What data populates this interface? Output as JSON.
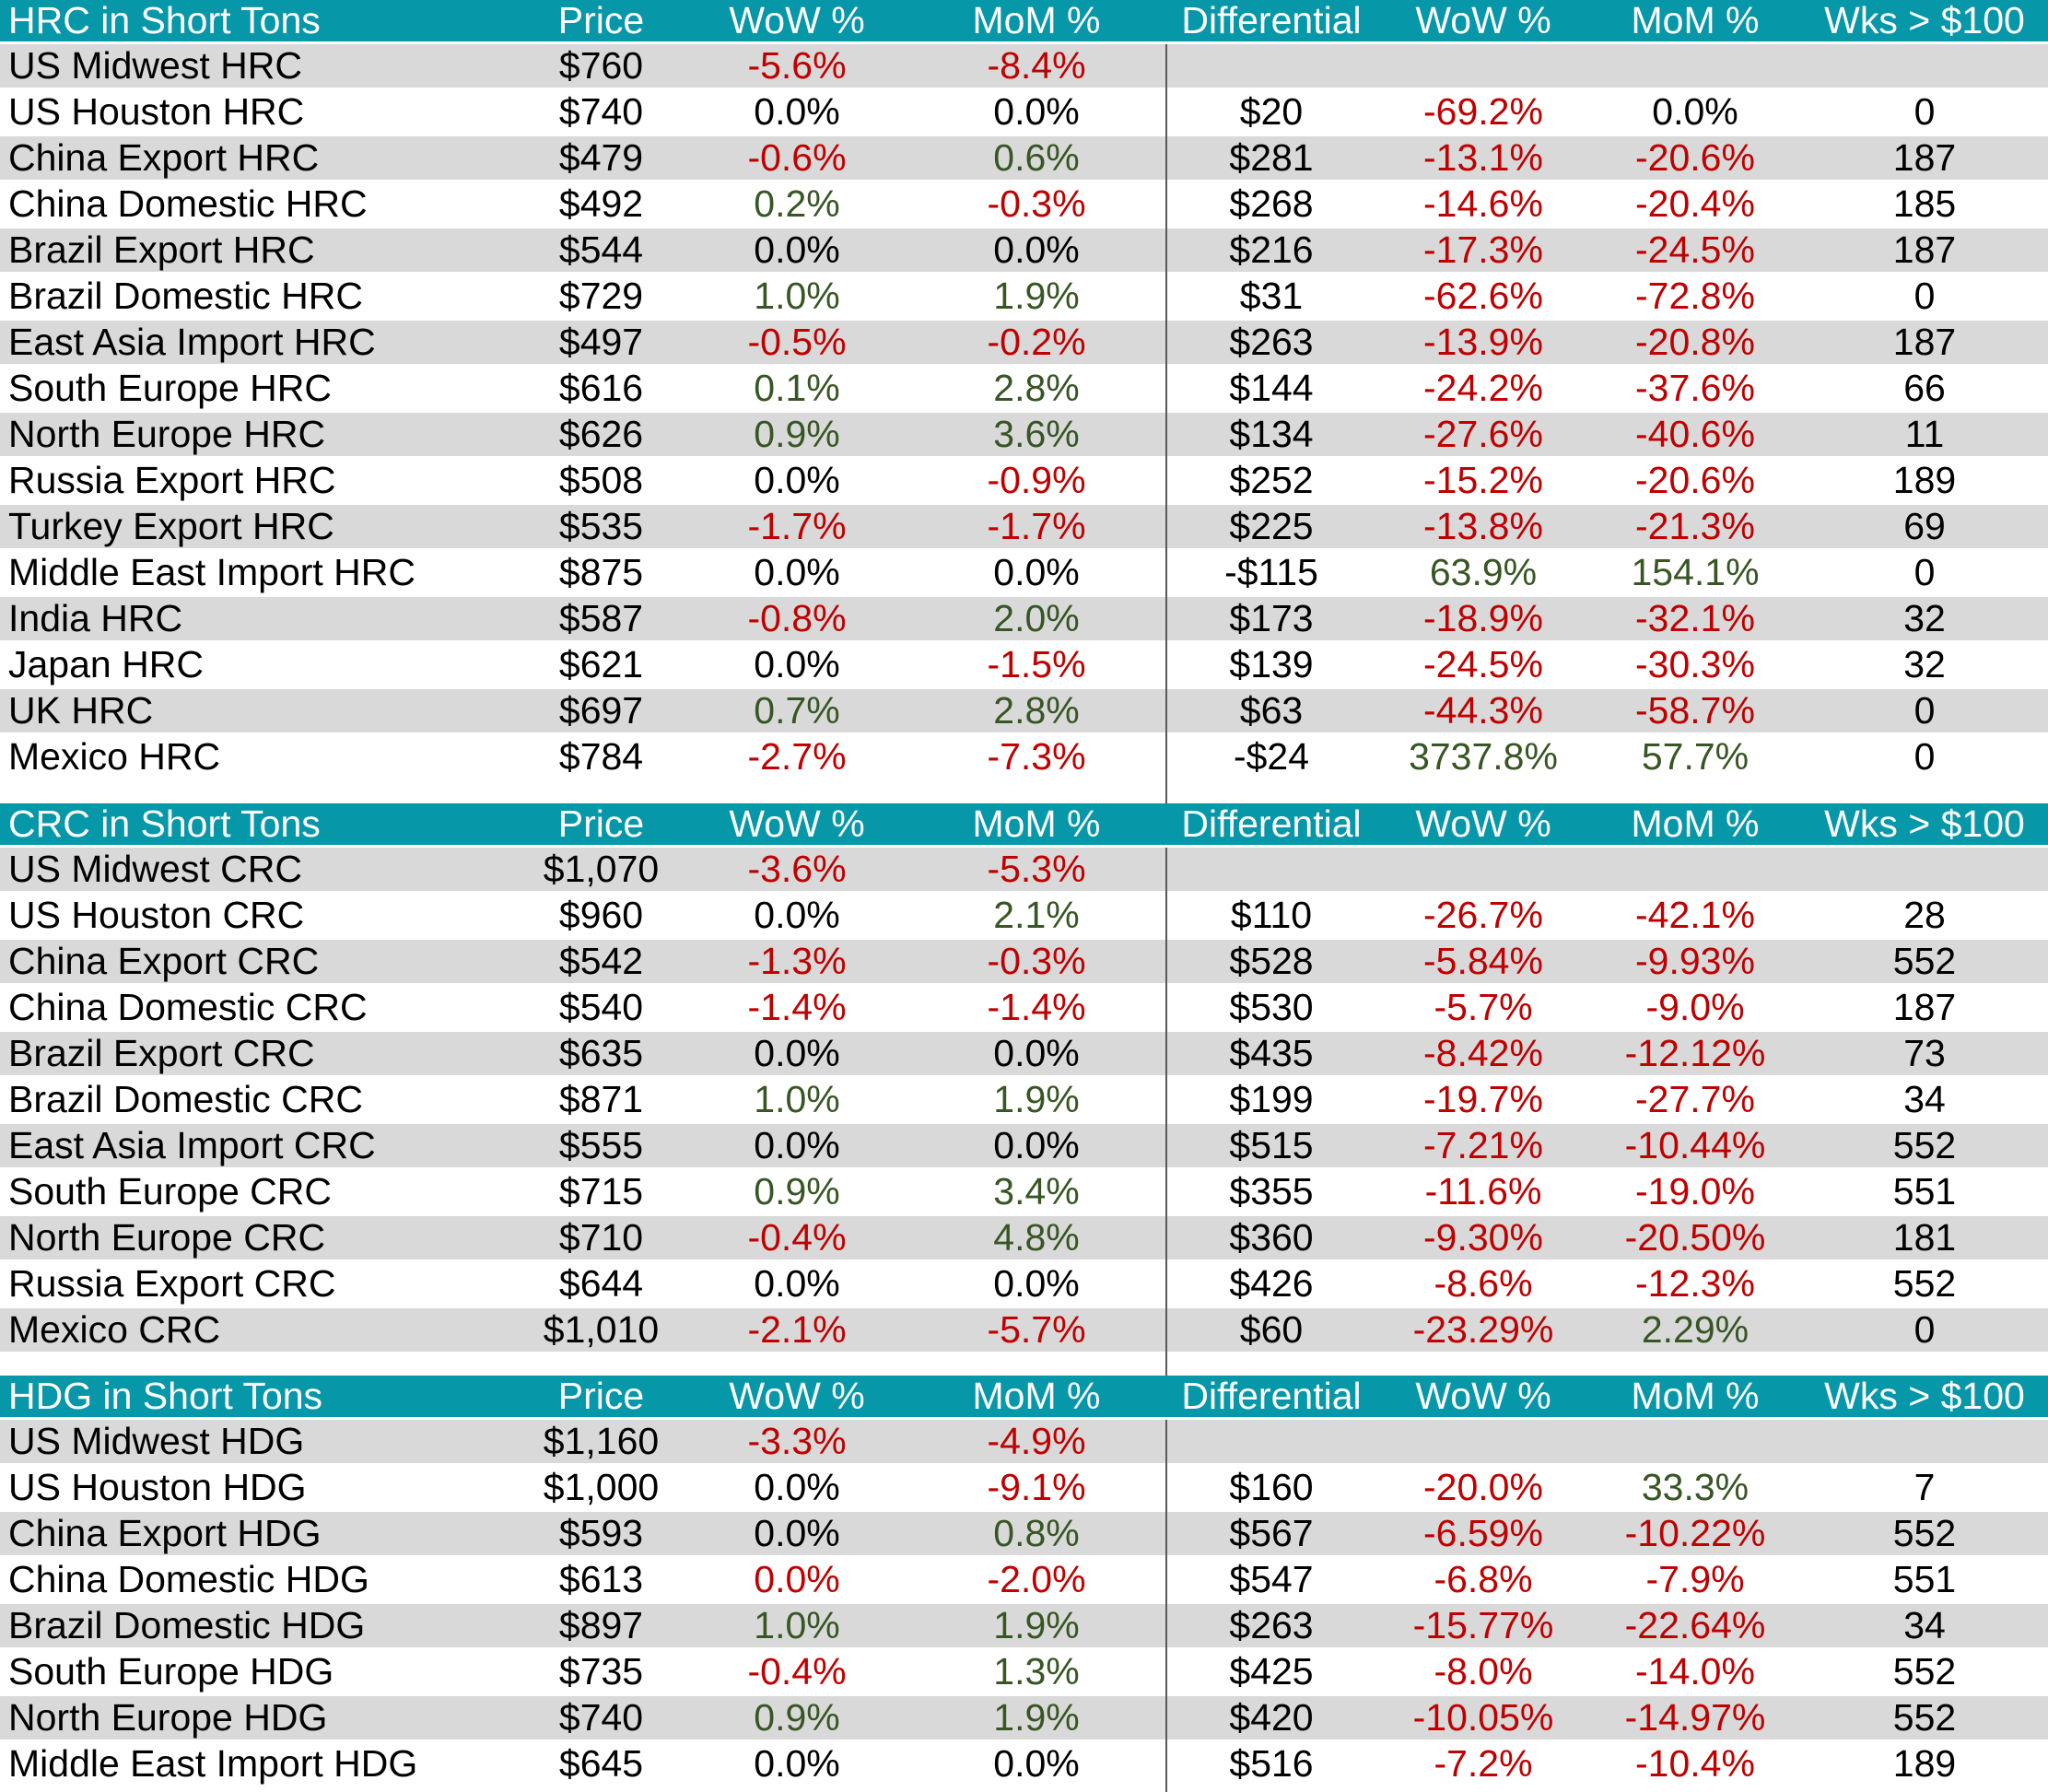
{
  "colors": {
    "header_teal": "#0697A9",
    "row_gray": "#D9D9D9",
    "negative_red": "#C00000",
    "positive_green": "#375623"
  },
  "columns": [
    "Price",
    "WoW %",
    "MoM %",
    "Differential",
    "WoW %",
    "MoM %",
    "Wks > $100"
  ],
  "sections": [
    {
      "id": "hrc",
      "title": "HRC in Short Tons",
      "rows": [
        {
          "label": "US Midwest HRC",
          "price": "$760",
          "wow": "-5.6%",
          "wow_c": "r",
          "mom": "-8.4%",
          "mom_c": "r",
          "diff": "",
          "w2": "",
          "w2_c": "k",
          "m2": "",
          "m2_c": "k",
          "wks": ""
        },
        {
          "label": "US Houston HRC",
          "price": "$740",
          "wow": "0.0%",
          "wow_c": "k",
          "mom": "0.0%",
          "mom_c": "k",
          "diff": "$20",
          "w2": "-69.2%",
          "w2_c": "r",
          "m2": "0.0%",
          "m2_c": "k",
          "wks": "0"
        },
        {
          "label": "China Export HRC",
          "price": "$479",
          "wow": "-0.6%",
          "wow_c": "r",
          "mom": "0.6%",
          "mom_c": "g",
          "diff": "$281",
          "w2": "-13.1%",
          "w2_c": "r",
          "m2": "-20.6%",
          "m2_c": "r",
          "wks": "187"
        },
        {
          "label": "China Domestic HRC",
          "price": "$492",
          "wow": "0.2%",
          "wow_c": "g",
          "mom": "-0.3%",
          "mom_c": "r",
          "diff": "$268",
          "w2": "-14.6%",
          "w2_c": "r",
          "m2": "-20.4%",
          "m2_c": "r",
          "wks": "185"
        },
        {
          "label": "Brazil Export HRC",
          "price": "$544",
          "wow": "0.0%",
          "wow_c": "k",
          "mom": "0.0%",
          "mom_c": "k",
          "diff": "$216",
          "w2": "-17.3%",
          "w2_c": "r",
          "m2": "-24.5%",
          "m2_c": "r",
          "wks": "187"
        },
        {
          "label": "Brazil Domestic HRC",
          "price": "$729",
          "wow": "1.0%",
          "wow_c": "g",
          "mom": "1.9%",
          "mom_c": "g",
          "diff": "$31",
          "w2": "-62.6%",
          "w2_c": "r",
          "m2": "-72.8%",
          "m2_c": "r",
          "wks": "0"
        },
        {
          "label": "East Asia Import HRC",
          "price": "$497",
          "wow": "-0.5%",
          "wow_c": "r",
          "mom": "-0.2%",
          "mom_c": "r",
          "diff": "$263",
          "w2": "-13.9%",
          "w2_c": "r",
          "m2": "-20.8%",
          "m2_c": "r",
          "wks": "187"
        },
        {
          "label": "South Europe HRC",
          "price": "$616",
          "wow": "0.1%",
          "wow_c": "g",
          "mom": "2.8%",
          "mom_c": "g",
          "diff": "$144",
          "w2": "-24.2%",
          "w2_c": "r",
          "m2": "-37.6%",
          "m2_c": "r",
          "wks": "66"
        },
        {
          "label": "North Europe HRC",
          "price": "$626",
          "wow": "0.9%",
          "wow_c": "g",
          "mom": "3.6%",
          "mom_c": "g",
          "diff": "$134",
          "w2": "-27.6%",
          "w2_c": "r",
          "m2": "-40.6%",
          "m2_c": "r",
          "wks": "11"
        },
        {
          "label": "Russia Export HRC",
          "price": "$508",
          "wow": "0.0%",
          "wow_c": "k",
          "mom": "-0.9%",
          "mom_c": "r",
          "diff": "$252",
          "w2": "-15.2%",
          "w2_c": "r",
          "m2": "-20.6%",
          "m2_c": "r",
          "wks": "189"
        },
        {
          "label": "Turkey Export HRC",
          "price": "$535",
          "wow": "-1.7%",
          "wow_c": "r",
          "mom": "-1.7%",
          "mom_c": "r",
          "diff": "$225",
          "w2": "-13.8%",
          "w2_c": "r",
          "m2": "-21.3%",
          "m2_c": "r",
          "wks": "69"
        },
        {
          "label": "Middle East Import HRC",
          "price": "$875",
          "wow": "0.0%",
          "wow_c": "k",
          "mom": "0.0%",
          "mom_c": "k",
          "diff": "-$115",
          "w2": "63.9%",
          "w2_c": "g",
          "m2": "154.1%",
          "m2_c": "g",
          "wks": "0"
        },
        {
          "label": "India HRC",
          "price": "$587",
          "wow": "-0.8%",
          "wow_c": "r",
          "mom": "2.0%",
          "mom_c": "g",
          "diff": "$173",
          "w2": "-18.9%",
          "w2_c": "r",
          "m2": "-32.1%",
          "m2_c": "r",
          "wks": "32"
        },
        {
          "label": "Japan HRC",
          "price": "$621",
          "wow": "0.0%",
          "wow_c": "k",
          "mom": "-1.5%",
          "mom_c": "r",
          "diff": "$139",
          "w2": "-24.5%",
          "w2_c": "r",
          "m2": "-30.3%",
          "m2_c": "r",
          "wks": "32"
        },
        {
          "label": "UK HRC",
          "price": "$697",
          "wow": "0.7%",
          "wow_c": "g",
          "mom": "2.8%",
          "mom_c": "g",
          "diff": "$63",
          "w2": "-44.3%",
          "w2_c": "r",
          "m2": "-58.7%",
          "m2_c": "r",
          "wks": "0"
        },
        {
          "label": "Mexico HRC",
          "price": "$784",
          "wow": "-2.7%",
          "wow_c": "r",
          "mom": "-7.3%",
          "mom_c": "r",
          "diff": "-$24",
          "w2": "3737.8%",
          "w2_c": "g",
          "m2": "57.7%",
          "m2_c": "g",
          "wks": "0"
        }
      ]
    },
    {
      "id": "crc",
      "title": "CRC in Short Tons",
      "rows": [
        {
          "label": "US Midwest CRC",
          "price": "$1,070",
          "wow": "-3.6%",
          "wow_c": "r",
          "mom": "-5.3%",
          "mom_c": "r",
          "diff": "",
          "w2": "",
          "w2_c": "k",
          "m2": "",
          "m2_c": "k",
          "wks": ""
        },
        {
          "label": "US Houston CRC",
          "price": "$960",
          "wow": "0.0%",
          "wow_c": "k",
          "mom": "2.1%",
          "mom_c": "g",
          "diff": "$110",
          "w2": "-26.7%",
          "w2_c": "r",
          "m2": "-42.1%",
          "m2_c": "r",
          "wks": "28"
        },
        {
          "label": "China Export CRC",
          "price": "$542",
          "wow": "-1.3%",
          "wow_c": "r",
          "mom": "-0.3%",
          "mom_c": "r",
          "diff": "$528",
          "w2": "-5.84%",
          "w2_c": "r",
          "m2": "-9.93%",
          "m2_c": "r",
          "wks": "552"
        },
        {
          "label": "China Domestic CRC",
          "price": "$540",
          "wow": "-1.4%",
          "wow_c": "r",
          "mom": "-1.4%",
          "mom_c": "r",
          "diff": "$530",
          "w2": "-5.7%",
          "w2_c": "r",
          "m2": "-9.0%",
          "m2_c": "r",
          "wks": "187"
        },
        {
          "label": "Brazil Export CRC",
          "price": "$635",
          "wow": "0.0%",
          "wow_c": "k",
          "mom": "0.0%",
          "mom_c": "k",
          "diff": "$435",
          "w2": "-8.42%",
          "w2_c": "r",
          "m2": "-12.12%",
          "m2_c": "r",
          "wks": "73"
        },
        {
          "label": "Brazil Domestic CRC",
          "price": "$871",
          "wow": "1.0%",
          "wow_c": "g",
          "mom": "1.9%",
          "mom_c": "g",
          "diff": "$199",
          "w2": "-19.7%",
          "w2_c": "r",
          "m2": "-27.7%",
          "m2_c": "r",
          "wks": "34"
        },
        {
          "label": "East Asia Import CRC",
          "price": "$555",
          "wow": "0.0%",
          "wow_c": "k",
          "mom": "0.0%",
          "mom_c": "k",
          "diff": "$515",
          "w2": "-7.21%",
          "w2_c": "r",
          "m2": "-10.44%",
          "m2_c": "r",
          "wks": "552"
        },
        {
          "label": "South Europe CRC",
          "price": "$715",
          "wow": "0.9%",
          "wow_c": "g",
          "mom": "3.4%",
          "mom_c": "g",
          "diff": "$355",
          "w2": "-11.6%",
          "w2_c": "r",
          "m2": "-19.0%",
          "m2_c": "r",
          "wks": "551"
        },
        {
          "label": "North Europe CRC",
          "price": "$710",
          "wow": "-0.4%",
          "wow_c": "r",
          "mom": "4.8%",
          "mom_c": "g",
          "diff": "$360",
          "w2": "-9.30%",
          "w2_c": "r",
          "m2": "-20.50%",
          "m2_c": "r",
          "wks": "181"
        },
        {
          "label": "Russia Export CRC",
          "price": "$644",
          "wow": "0.0%",
          "wow_c": "k",
          "mom": "0.0%",
          "mom_c": "k",
          "diff": "$426",
          "w2": "-8.6%",
          "w2_c": "r",
          "m2": "-12.3%",
          "m2_c": "r",
          "wks": "552"
        },
        {
          "label": "Mexico CRC",
          "price": "$1,010",
          "wow": "-2.1%",
          "wow_c": "r",
          "mom": "-5.7%",
          "mom_c": "r",
          "diff": "$60",
          "w2": "-23.29%",
          "w2_c": "r",
          "m2": "2.29%",
          "m2_c": "g",
          "wks": "0"
        }
      ]
    },
    {
      "id": "hdg",
      "title": "HDG in Short Tons",
      "rows": [
        {
          "label": "US Midwest HDG",
          "price": "$1,160",
          "wow": "-3.3%",
          "wow_c": "r",
          "mom": "-4.9%",
          "mom_c": "r",
          "diff": "",
          "w2": "",
          "w2_c": "k",
          "m2": "",
          "m2_c": "k",
          "wks": ""
        },
        {
          "label": "US Houston HDG",
          "price": "$1,000",
          "wow": "0.0%",
          "wow_c": "k",
          "mom": "-9.1%",
          "mom_c": "r",
          "diff": "$160",
          "w2": "-20.0%",
          "w2_c": "r",
          "m2": "33.3%",
          "m2_c": "g",
          "wks": "7"
        },
        {
          "label": "China Export HDG",
          "price": "$593",
          "wow": "0.0%",
          "wow_c": "k",
          "mom": "0.8%",
          "mom_c": "g",
          "diff": "$567",
          "w2": "-6.59%",
          "w2_c": "r",
          "m2": "-10.22%",
          "m2_c": "r",
          "wks": "552"
        },
        {
          "label": "China Domestic HDG",
          "price": "$613",
          "wow": "0.0%",
          "wow_c": "r",
          "mom": "-2.0%",
          "mom_c": "r",
          "diff": "$547",
          "w2": "-6.8%",
          "w2_c": "r",
          "m2": "-7.9%",
          "m2_c": "r",
          "wks": "551"
        },
        {
          "label": "Brazil Domestic HDG",
          "price": "$897",
          "wow": "1.0%",
          "wow_c": "g",
          "mom": "1.9%",
          "mom_c": "g",
          "diff": "$263",
          "w2": "-15.77%",
          "w2_c": "r",
          "m2": "-22.64%",
          "m2_c": "r",
          "wks": "34"
        },
        {
          "label": "South Europe HDG",
          "price": "$735",
          "wow": "-0.4%",
          "wow_c": "r",
          "mom": "1.3%",
          "mom_c": "g",
          "diff": "$425",
          "w2": "-8.0%",
          "w2_c": "r",
          "m2": "-14.0%",
          "m2_c": "r",
          "wks": "552"
        },
        {
          "label": "North Europe HDG",
          "price": "$740",
          "wow": "0.9%",
          "wow_c": "g",
          "mom": "1.9%",
          "mom_c": "g",
          "diff": "$420",
          "w2": "-10.05%",
          "w2_c": "r",
          "m2": "-14.97%",
          "m2_c": "r",
          "wks": "552"
        },
        {
          "label": "Middle East Import HDG",
          "price": "$645",
          "wow": "0.0%",
          "wow_c": "k",
          "mom": "0.0%",
          "mom_c": "k",
          "diff": "$516",
          "w2": "-7.2%",
          "w2_c": "r",
          "m2": "-10.4%",
          "m2_c": "r",
          "wks": "189"
        }
      ]
    }
  ]
}
